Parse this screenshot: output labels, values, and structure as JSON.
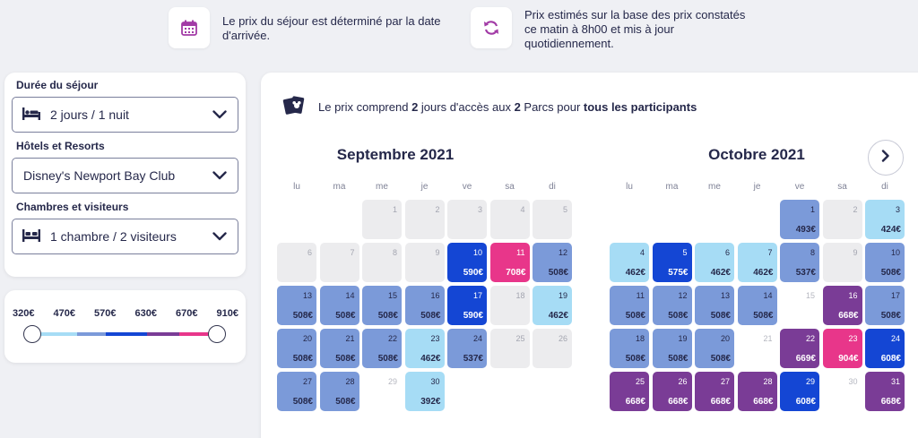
{
  "info": {
    "arrival_text": "Le prix du séjour est déterminé par la date d'arrivée.",
    "estimate_text": "Prix estimés sur la base des prix constatés ce matin à 8h00 et mis à jour quotidiennement."
  },
  "filters": {
    "duration_label": "Durée du séjour",
    "duration_value": "2 jours / 1 nuit",
    "hotel_label": "Hôtels et Resorts",
    "hotel_value": "Disney's Newport Bay Club",
    "rooms_label": "Chambres et visiteurs",
    "rooms_value": "1 chambre / 2 visiteurs"
  },
  "price_slider": {
    "labels": [
      "320€",
      "470€",
      "570€",
      "630€",
      "670€",
      "910€"
    ],
    "min": "320€",
    "max": "910€",
    "colors": [
      "#a6dcf5",
      "#7b9ad9",
      "#1446d4",
      "#7a3c96",
      "#e8368a"
    ]
  },
  "calendar": {
    "note": {
      "t1": "Le prix comprend ",
      "b1": "2",
      "t2": " jours d'accès aux ",
      "b2": "2",
      "t3": " Parcs pour ",
      "b3": "tous les participants"
    },
    "weekdays": [
      "lu",
      "ma",
      "me",
      "je",
      "ve",
      "sa",
      "di"
    ],
    "tiers": {
      "light": {
        "bg": "#a6dcf5",
        "fg": "#25284a"
      },
      "mid": {
        "bg": "#7b9ad9",
        "fg": "#25284a"
      },
      "blue": {
        "bg": "#1446d4",
        "fg": "#ffffff"
      },
      "purple": {
        "bg": "#7a3c96",
        "fg": "#ffffff"
      },
      "pink": {
        "bg": "#e8368a",
        "fg": "#ffffff"
      }
    },
    "months": [
      {
        "title": "Septembre 2021",
        "start_offset": 2,
        "days": [
          {
            "d": "1",
            "p": null,
            "t": "na"
          },
          {
            "d": "2",
            "p": null,
            "t": "na"
          },
          {
            "d": "3",
            "p": null,
            "t": "na"
          },
          {
            "d": "4",
            "p": null,
            "t": "na"
          },
          {
            "d": "5",
            "p": null,
            "t": "na"
          },
          {
            "d": "6",
            "p": null,
            "t": "na"
          },
          {
            "d": "7",
            "p": null,
            "t": "na"
          },
          {
            "d": "8",
            "p": null,
            "t": "na"
          },
          {
            "d": "9",
            "p": null,
            "t": "na"
          },
          {
            "d": "10",
            "p": "590€",
            "t": "blue"
          },
          {
            "d": "11",
            "p": "708€",
            "t": "pink"
          },
          {
            "d": "12",
            "p": "508€",
            "t": "mid"
          },
          {
            "d": "13",
            "p": "508€",
            "t": "mid"
          },
          {
            "d": "14",
            "p": "508€",
            "t": "mid"
          },
          {
            "d": "15",
            "p": "508€",
            "t": "mid"
          },
          {
            "d": "16",
            "p": "508€",
            "t": "mid"
          },
          {
            "d": "17",
            "p": "590€",
            "t": "blue"
          },
          {
            "d": "18",
            "p": null,
            "t": "na"
          },
          {
            "d": "19",
            "p": "462€",
            "t": "light"
          },
          {
            "d": "20",
            "p": "508€",
            "t": "mid"
          },
          {
            "d": "21",
            "p": "508€",
            "t": "mid"
          },
          {
            "d": "22",
            "p": "508€",
            "t": "mid"
          },
          {
            "d": "23",
            "p": "462€",
            "t": "light"
          },
          {
            "d": "24",
            "p": "537€",
            "t": "mid"
          },
          {
            "d": "25",
            "p": null,
            "t": "na"
          },
          {
            "d": "26",
            "p": null,
            "t": "na"
          },
          {
            "d": "27",
            "p": "508€",
            "t": "mid"
          },
          {
            "d": "28",
            "p": "508€",
            "t": "mid"
          },
          {
            "d": "29",
            "p": null,
            "t": "blank"
          },
          {
            "d": "30",
            "p": "392€",
            "t": "light"
          }
        ]
      },
      {
        "title": "Octobre 2021",
        "start_offset": 4,
        "days": [
          {
            "d": "1",
            "p": "493€",
            "t": "mid"
          },
          {
            "d": "2",
            "p": null,
            "t": "na"
          },
          {
            "d": "3",
            "p": "424€",
            "t": "light"
          },
          {
            "d": "4",
            "p": "462€",
            "t": "light"
          },
          {
            "d": "5",
            "p": "575€",
            "t": "blue"
          },
          {
            "d": "6",
            "p": "462€",
            "t": "light"
          },
          {
            "d": "7",
            "p": "462€",
            "t": "light"
          },
          {
            "d": "8",
            "p": "537€",
            "t": "mid"
          },
          {
            "d": "9",
            "p": null,
            "t": "na"
          },
          {
            "d": "10",
            "p": "508€",
            "t": "mid"
          },
          {
            "d": "11",
            "p": "508€",
            "t": "mid"
          },
          {
            "d": "12",
            "p": "508€",
            "t": "mid"
          },
          {
            "d": "13",
            "p": "508€",
            "t": "mid"
          },
          {
            "d": "14",
            "p": "508€",
            "t": "mid"
          },
          {
            "d": "15",
            "p": null,
            "t": "blank"
          },
          {
            "d": "16",
            "p": "668€",
            "t": "purple"
          },
          {
            "d": "17",
            "p": "508€",
            "t": "mid"
          },
          {
            "d": "18",
            "p": "508€",
            "t": "mid"
          },
          {
            "d": "19",
            "p": "508€",
            "t": "mid"
          },
          {
            "d": "20",
            "p": "508€",
            "t": "mid"
          },
          {
            "d": "21",
            "p": null,
            "t": "blank"
          },
          {
            "d": "22",
            "p": "669€",
            "t": "purple"
          },
          {
            "d": "23",
            "p": "904€",
            "t": "pink"
          },
          {
            "d": "24",
            "p": "608€",
            "t": "blue"
          },
          {
            "d": "25",
            "p": "668€",
            "t": "purple"
          },
          {
            "d": "26",
            "p": "668€",
            "t": "purple"
          },
          {
            "d": "27",
            "p": "668€",
            "t": "purple"
          },
          {
            "d": "28",
            "p": "668€",
            "t": "purple"
          },
          {
            "d": "29",
            "p": "608€",
            "t": "blue"
          },
          {
            "d": "30",
            "p": null,
            "t": "blank"
          },
          {
            "d": "31",
            "p": "668€",
            "t": "purple"
          }
        ]
      }
    ]
  }
}
